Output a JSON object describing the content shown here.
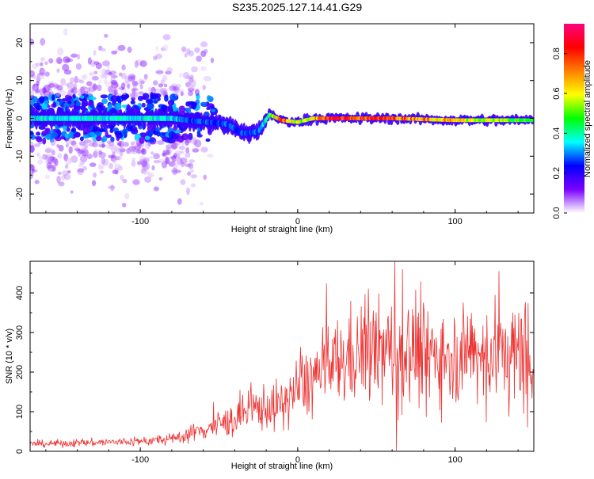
{
  "title": "S235.2025.127.14.41.G29",
  "chart_data": [
    {
      "type": "heatmap",
      "xlabel": "Height of straight line (km)",
      "ylabel": "Frequency (Hz)",
      "xlim": [
        -170,
        150
      ],
      "ylim": [
        -25,
        25
      ],
      "x_ticks": [
        -100,
        0,
        100
      ],
      "y_ticks": [
        -20,
        -10,
        0,
        10,
        20
      ],
      "colorbar": {
        "label": "Normalized spectral amplitude",
        "range": [
          0,
          0.95
        ],
        "ticks": [
          0.0,
          0.2,
          0.4,
          0.6,
          0.8
        ],
        "colormap": "rainbow",
        "stops": [
          "#ffffff",
          "#7a00ff",
          "#0000ff",
          "#00ffff",
          "#00ff00",
          "#ffff00",
          "#ff8000",
          "#ff0000",
          "#ff0080"
        ]
      },
      "ridge": [
        {
          "x": -170,
          "freq": 0,
          "amp": 0.4
        },
        {
          "x": -80,
          "freq": 0,
          "amp": 0.4
        },
        {
          "x": -70,
          "freq": -0.5,
          "amp": 0.3
        },
        {
          "x": -45,
          "freq": -1.5,
          "amp": 0.3
        },
        {
          "x": -35,
          "freq": -4,
          "amp": 0.3
        },
        {
          "x": -25,
          "freq": -3.5,
          "amp": 0.3
        },
        {
          "x": -18,
          "freq": 1,
          "amp": 0.5
        },
        {
          "x": -10,
          "freq": -0.5,
          "amp": 0.85
        },
        {
          "x": 0,
          "freq": -1,
          "amp": 0.6
        },
        {
          "x": 10,
          "freq": 0,
          "amp": 0.7
        },
        {
          "x": 20,
          "freq": 0,
          "amp": 0.9
        },
        {
          "x": 60,
          "freq": 0,
          "amp": 0.85
        },
        {
          "x": 100,
          "freq": -0.5,
          "amp": 0.7
        },
        {
          "x": 150,
          "freq": -0.5,
          "amp": 0.5
        }
      ]
    },
    {
      "type": "line",
      "xlabel": "Height of straight line (km)",
      "ylabel": "SNR (10 * v/v)",
      "xlim": [
        -170,
        150
      ],
      "ylim": [
        0,
        480
      ],
      "x_ticks": [
        -100,
        0,
        100
      ],
      "y_ticks": [
        0,
        100,
        200,
        300,
        400
      ],
      "color": "#ee3333",
      "trend": [
        {
          "x": -170,
          "y": 18
        },
        {
          "x": -100,
          "y": 25
        },
        {
          "x": -80,
          "y": 30
        },
        {
          "x": -60,
          "y": 55
        },
        {
          "x": -40,
          "y": 80
        },
        {
          "x": -25,
          "y": 110
        },
        {
          "x": -10,
          "y": 115
        },
        {
          "x": 0,
          "y": 160
        },
        {
          "x": 20,
          "y": 210
        },
        {
          "x": 40,
          "y": 250
        },
        {
          "x": 80,
          "y": 250
        },
        {
          "x": 120,
          "y": 245
        },
        {
          "x": 150,
          "y": 240
        }
      ]
    }
  ]
}
